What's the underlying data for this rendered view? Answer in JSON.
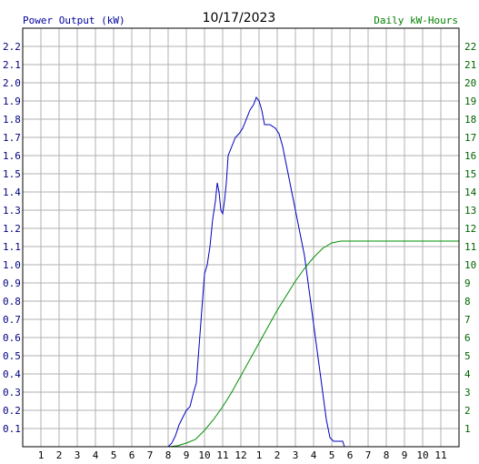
{
  "chart_data": {
    "type": "line",
    "title": "10/17/2023",
    "left_axis_label": "Power Output (kW)",
    "right_axis_label": "Daily kW-Hours",
    "x_tick_labels": [
      "1",
      "2",
      "3",
      "4",
      "5",
      "6",
      "7",
      "8",
      "9",
      "10",
      "11",
      "12",
      "1",
      "2",
      "3",
      "4",
      "5",
      "6",
      "7",
      "8",
      "9",
      "10",
      "11"
    ],
    "left_ticks": [
      "0.1",
      "0.2",
      "0.3",
      "0.4",
      "0.5",
      "0.6",
      "0.7",
      "0.8",
      "0.9",
      "1.0",
      "1.1",
      "1.2",
      "1.3",
      "1.4",
      "1.5",
      "1.6",
      "1.7",
      "1.8",
      "1.9",
      "2.0",
      "2.1",
      "2.2"
    ],
    "right_ticks": [
      "1",
      "2",
      "3",
      "4",
      "5",
      "6",
      "7",
      "8",
      "9",
      "10",
      "11",
      "12",
      "13",
      "14",
      "15",
      "16",
      "17",
      "18",
      "19",
      "20",
      "21",
      "22"
    ],
    "ylim_left": [
      0,
      2.3
    ],
    "ylim_right": [
      0,
      23
    ],
    "grid": true,
    "colors": {
      "power": "#0000c0",
      "energy": "#009000",
      "grid": "#b0b0b0",
      "left_text": "#000080",
      "right_text": "#006400"
    },
    "series": [
      {
        "name": "Power Output (kW)",
        "axis": "left",
        "points": [
          [
            7.6,
            0
          ],
          [
            8.0,
            0.0
          ],
          [
            8.2,
            0.02
          ],
          [
            8.4,
            0.06
          ],
          [
            8.6,
            0.12
          ],
          [
            8.8,
            0.16
          ],
          [
            9.0,
            0.2
          ],
          [
            9.2,
            0.22
          ],
          [
            9.4,
            0.3
          ],
          [
            9.55,
            0.35
          ],
          [
            9.7,
            0.55
          ],
          [
            9.85,
            0.75
          ],
          [
            10.0,
            0.95
          ],
          [
            10.15,
            1.0
          ],
          [
            10.3,
            1.1
          ],
          [
            10.45,
            1.25
          ],
          [
            10.6,
            1.35
          ],
          [
            10.7,
            1.45
          ],
          [
            10.8,
            1.4
          ],
          [
            10.9,
            1.3
          ],
          [
            11.0,
            1.28
          ],
          [
            11.1,
            1.35
          ],
          [
            11.2,
            1.45
          ],
          [
            11.3,
            1.6
          ],
          [
            11.5,
            1.65
          ],
          [
            11.7,
            1.7
          ],
          [
            11.9,
            1.72
          ],
          [
            12.1,
            1.75
          ],
          [
            12.3,
            1.8
          ],
          [
            12.5,
            1.85
          ],
          [
            12.7,
            1.88
          ],
          [
            12.85,
            1.92
          ],
          [
            13.0,
            1.9
          ],
          [
            13.15,
            1.85
          ],
          [
            13.3,
            1.77
          ],
          [
            13.6,
            1.77
          ],
          [
            13.9,
            1.75
          ],
          [
            14.1,
            1.72
          ],
          [
            14.3,
            1.65
          ],
          [
            14.5,
            1.55
          ],
          [
            14.7,
            1.45
          ],
          [
            14.9,
            1.35
          ],
          [
            15.1,
            1.25
          ],
          [
            15.3,
            1.15
          ],
          [
            15.5,
            1.05
          ],
          [
            15.7,
            0.9
          ],
          [
            15.9,
            0.75
          ],
          [
            16.1,
            0.6
          ],
          [
            16.3,
            0.45
          ],
          [
            16.5,
            0.3
          ],
          [
            16.7,
            0.15
          ],
          [
            16.9,
            0.05
          ],
          [
            17.1,
            0.03
          ],
          [
            17.6,
            0.03
          ],
          [
            17.7,
            0.0
          ]
        ]
      },
      {
        "name": "Daily kW-Hours",
        "axis": "right",
        "points": [
          [
            7.6,
            0
          ],
          [
            8.0,
            0.0
          ],
          [
            8.5,
            0.05
          ],
          [
            9.0,
            0.2
          ],
          [
            9.5,
            0.4
          ],
          [
            10.0,
            0.9
          ],
          [
            10.5,
            1.5
          ],
          [
            11.0,
            2.2
          ],
          [
            11.5,
            3.0
          ],
          [
            12.0,
            3.9
          ],
          [
            12.5,
            4.8
          ],
          [
            13.0,
            5.7
          ],
          [
            13.5,
            6.6
          ],
          [
            14.0,
            7.5
          ],
          [
            14.5,
            8.3
          ],
          [
            15.0,
            9.1
          ],
          [
            15.5,
            9.8
          ],
          [
            16.0,
            10.4
          ],
          [
            16.5,
            10.9
          ],
          [
            17.0,
            11.2
          ],
          [
            17.5,
            11.3
          ],
          [
            18.0,
            11.3
          ],
          [
            19.0,
            11.3
          ],
          [
            20.0,
            11.3
          ],
          [
            21.0,
            11.3
          ],
          [
            22.0,
            11.3
          ],
          [
            23.0,
            11.3
          ],
          [
            24.0,
            11.3
          ]
        ]
      }
    ]
  }
}
